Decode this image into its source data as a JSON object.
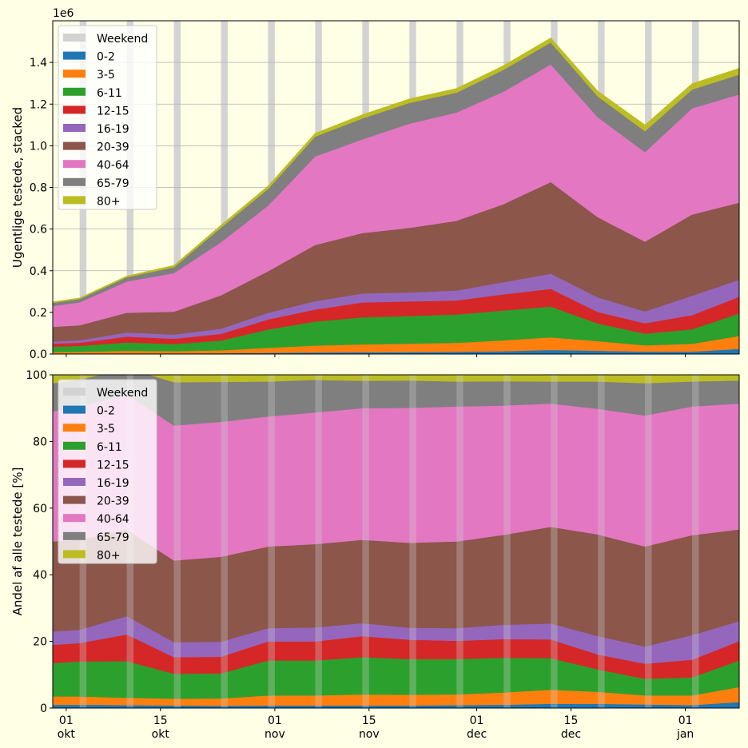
{
  "colors": {
    "background": "#ffffe6",
    "weekend": "#d3d3d3",
    "grid": "#b0b0b0",
    "series": [
      "#1f77b4",
      "#ff7f0e",
      "#2ca02c",
      "#d62728",
      "#9467bd",
      "#8c564b",
      "#e377c2",
      "#7f7f7f",
      "#bcbd22"
    ]
  },
  "x_ticks": [
    {
      "day": 0,
      "line1": "01",
      "line2": "okt"
    },
    {
      "day": 14,
      "line1": "15",
      "line2": "okt"
    },
    {
      "day": 31,
      "line1": "01",
      "line2": "nov"
    },
    {
      "day": 45,
      "line1": "15",
      "line2": "nov"
    },
    {
      "day": 61,
      "line1": "01",
      "line2": "dec"
    },
    {
      "day": 75,
      "line1": "15",
      "line2": "dec"
    },
    {
      "day": 92,
      "line1": "01",
      "line2": "jan"
    }
  ],
  "chart_data": [
    {
      "type": "area",
      "stacked": true,
      "title": "",
      "offset_label": "1e6",
      "ylabel": "Ugentlige testede, stacked",
      "ylim": [
        0,
        1600000
      ],
      "yticks": [
        {
          "value": 0,
          "label": "0.0"
        },
        {
          "value": 200000,
          "label": "0.2"
        },
        {
          "value": 400000,
          "label": "0.4"
        },
        {
          "value": 600000,
          "label": "0.6"
        },
        {
          "value": 800000,
          "label": "0.8"
        },
        {
          "value": 1000000,
          "label": "1.0"
        },
        {
          "value": 1200000,
          "label": "1.2"
        },
        {
          "value": 1400000,
          "label": "1.4"
        }
      ],
      "grid": "horizontal",
      "legend": "top-left",
      "legend_entries": [
        "Weekend",
        "0-2",
        "3-5",
        "6-11",
        "12-15",
        "16-19",
        "20-39",
        "40-64",
        "65-79",
        "80+"
      ],
      "x": [
        "2020-09-29",
        "2020-10-03",
        "2020-10-10",
        "2020-10-17",
        "2020-10-24",
        "2020-10-31",
        "2020-11-07",
        "2020-11-14",
        "2020-11-21",
        "2020-11-28",
        "2020-12-05",
        "2020-12-12",
        "2020-12-19",
        "2020-12-26",
        "2021-01-02",
        "2021-01-09"
      ],
      "weekends": [
        "2020-10-03",
        "2020-10-10",
        "2020-10-17",
        "2020-10-24",
        "2020-10-31",
        "2020-11-07",
        "2020-11-14",
        "2020-11-21",
        "2020-11-28",
        "2020-12-05",
        "2020-12-12",
        "2020-12-19",
        "2020-12-26",
        "2021-01-02",
        "2021-01-09"
      ],
      "series": [
        {
          "name": "0-2",
          "values": [
            2500,
            2500,
            3500,
            3500,
            4000,
            6000,
            8000,
            9000,
            10000,
            11000,
            14000,
            20000,
            16000,
            12000,
            12000,
            25000
          ]
        },
        {
          "name": "3-5",
          "values": [
            8000,
            8000,
            12000,
            10000,
            14000,
            24000,
            33000,
            37000,
            40000,
            43000,
            52000,
            60000,
            46000,
            30000,
            37000,
            62000
          ]
        },
        {
          "name": "6-11",
          "values": [
            25000,
            29000,
            40000,
            35000,
            47000,
            88000,
            115000,
            130000,
            133000,
            136000,
            143000,
            148000,
            85000,
            56000,
            70000,
            108000
          ]
        },
        {
          "name": "12-15",
          "values": [
            15000,
            15000,
            28000,
            25000,
            32000,
            48000,
            58000,
            72000,
            70000,
            67000,
            78000,
            85000,
            55000,
            50000,
            68000,
            80000
          ]
        },
        {
          "name": "16-19",
          "values": [
            10000,
            12000,
            20000,
            20000,
            25000,
            32000,
            40000,
            43000,
            43000,
            48000,
            58000,
            73000,
            70000,
            57000,
            93000,
            82000
          ]
        },
        {
          "name": "20-39",
          "values": [
            70000,
            72000,
            95000,
            110000,
            160000,
            200000,
            270000,
            290000,
            310000,
            335000,
            375000,
            440000,
            385000,
            335000,
            390000,
            370000
          ]
        },
        {
          "name": "40-64",
          "values": [
            100000,
            110000,
            150000,
            185000,
            255000,
            315000,
            425000,
            450000,
            500000,
            520000,
            540000,
            565000,
            480000,
            430000,
            510000,
            520000
          ]
        },
        {
          "name": "65-79",
          "values": [
            15000,
            16000,
            20000,
            28000,
            70000,
            80000,
            95000,
            100000,
            100000,
            95000,
            105000,
            105000,
            100000,
            100000,
            90000,
            95000
          ]
        },
        {
          "name": "80+",
          "values": [
            5000,
            5000,
            6000,
            9000,
            12000,
            14000,
            16000,
            18000,
            19000,
            20000,
            20000,
            22000,
            25000,
            30000,
            28000,
            30000
          ]
        }
      ]
    },
    {
      "type": "area",
      "stacked": true,
      "title": "",
      "ylabel": "Andel af alle testede [%]",
      "ylim": [
        0,
        100
      ],
      "yticks": [
        {
          "value": 0,
          "label": "0"
        },
        {
          "value": 20,
          "label": "20"
        },
        {
          "value": 40,
          "label": "40"
        },
        {
          "value": 60,
          "label": "60"
        },
        {
          "value": 80,
          "label": "80"
        },
        {
          "value": 100,
          "label": "100"
        }
      ],
      "grid": "horizontal",
      "legend": "top-left",
      "legend_entries": [
        "Weekend",
        "0-2",
        "3-5",
        "6-11",
        "12-15",
        "16-19",
        "20-39",
        "40-64",
        "65-79",
        "80+"
      ],
      "x": [
        "2020-09-29",
        "2020-10-03",
        "2020-10-10",
        "2020-10-17",
        "2020-10-24",
        "2020-10-31",
        "2020-11-07",
        "2020-11-14",
        "2020-11-21",
        "2020-11-28",
        "2020-12-05",
        "2020-12-12",
        "2020-12-19",
        "2020-12-26",
        "2021-01-02",
        "2021-01-09"
      ],
      "weekends": [
        "2020-10-03",
        "2020-10-10",
        "2020-10-17",
        "2020-10-24",
        "2020-10-31",
        "2020-11-07",
        "2020-11-14",
        "2020-11-21",
        "2020-11-28",
        "2020-12-05",
        "2020-12-12",
        "2020-12-19",
        "2020-12-26",
        "2021-01-02",
        "2021-01-09"
      ],
      "series": [
        {
          "name": "0-2",
          "values": [
            1.0,
            1.0,
            0.9,
            0.8,
            0.7,
            0.8,
            0.8,
            0.8,
            0.8,
            0.9,
            1.0,
            1.3,
            1.3,
            1.1,
            0.9,
            1.8
          ]
        },
        {
          "name": "3-5",
          "values": [
            2.5,
            2.5,
            2.2,
            2.0,
            2.2,
            3.0,
            3.0,
            3.3,
            3.2,
            3.2,
            3.7,
            4.2,
            3.6,
            2.7,
            2.9,
            4.5
          ]
        },
        {
          "name": "6-11",
          "values": [
            10.0,
            10.5,
            11.0,
            7.5,
            7.5,
            10.5,
            10.5,
            11.2,
            10.7,
            10.6,
            10.4,
            9.5,
            6.7,
            5.0,
            5.4,
            8.0
          ]
        },
        {
          "name": "12-15",
          "values": [
            5.5,
            5.5,
            8.0,
            5.0,
            5.0,
            5.7,
            5.7,
            6.3,
            5.8,
            5.5,
            5.6,
            5.6,
            4.5,
            4.5,
            5.3,
            5.8
          ]
        },
        {
          "name": "16-19",
          "values": [
            4.0,
            4.0,
            5.5,
            4.5,
            4.5,
            4.0,
            4.2,
            3.9,
            3.6,
            3.8,
            4.3,
            4.8,
            5.5,
            5.2,
            7.4,
            6.0
          ]
        },
        {
          "name": "20-39",
          "values": [
            27.0,
            27.0,
            26.0,
            24.5,
            25.5,
            24.5,
            25.0,
            25.0,
            25.5,
            26.0,
            27.0,
            29.0,
            30.5,
            30.0,
            30.0,
            27.5
          ]
        },
        {
          "name": "40-64",
          "values": [
            39.0,
            40.0,
            40.5,
            40.5,
            40.5,
            39.0,
            39.5,
            39.5,
            40.5,
            40.5,
            38.8,
            37.0,
            37.7,
            39.3,
            38.6,
            37.8
          ]
        },
        {
          "name": "65-79",
          "values": [
            8.5,
            8.0,
            8.0,
            13.0,
            12.0,
            10.5,
            9.8,
            8.2,
            8.2,
            7.5,
            7.3,
            6.6,
            8.2,
            9.7,
            7.5,
            6.9
          ]
        },
        {
          "name": "80+",
          "values": [
            2.5,
            1.5,
            2.0,
            2.2,
            2.1,
            2.0,
            1.5,
            1.8,
            1.7,
            2.0,
            1.9,
            2.0,
            2.0,
            2.5,
            2.0,
            1.7
          ]
        }
      ]
    }
  ]
}
